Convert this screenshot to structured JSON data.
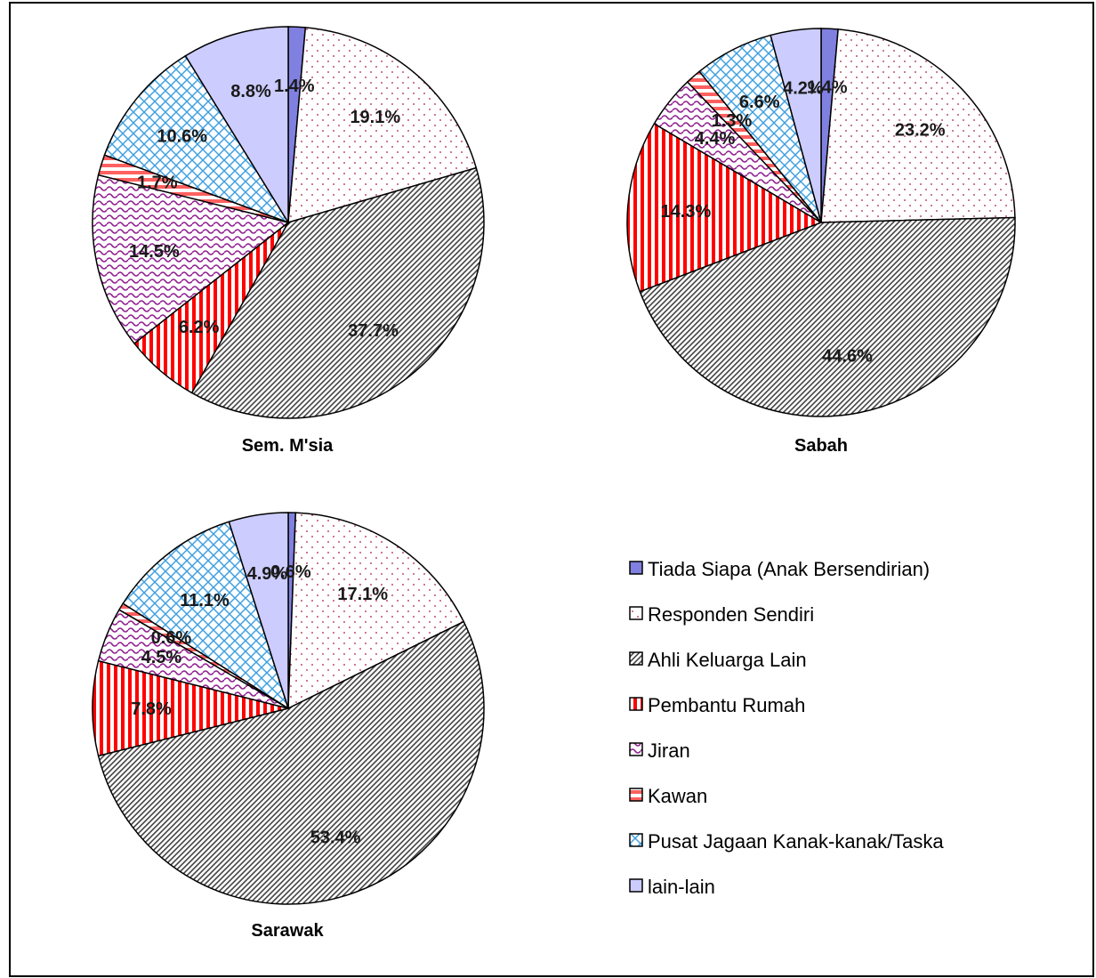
{
  "legend": [
    {
      "key": "tiada",
      "label": "Tiada Siapa (Anak Bersendirian)",
      "pattern": "solid",
      "color": "#8080e0"
    },
    {
      "key": "responden",
      "label": "Responden Sendiri",
      "pattern": "dots",
      "color": "#c05070"
    },
    {
      "key": "ahli",
      "label": "Ahli Keluarga Lain",
      "pattern": "diag",
      "color": "#404040"
    },
    {
      "key": "pembantu",
      "label": "Pembantu Rumah",
      "pattern": "vstripe",
      "color": "#ff0000"
    },
    {
      "key": "jiran",
      "label": "Jiran",
      "pattern": "wave",
      "color": "#902090"
    },
    {
      "key": "kawan",
      "label": "Kawan",
      "pattern": "hstripe",
      "color": "#ff5050"
    },
    {
      "key": "pusat",
      "label": "Pusat Jagaan Kanak-kanak/Taska",
      "pattern": "cross",
      "color": "#40a0e0"
    },
    {
      "key": "lain",
      "label": "lain-lain",
      "pattern": "solid",
      "color": "#ccccff"
    }
  ],
  "chart_data": [
    {
      "type": "pie",
      "title": "Sem. M'sia",
      "categories": [
        "Tiada Siapa (Anak Bersendirian)",
        "Responden Sendiri",
        "Ahli Keluarga Lain",
        "Pembantu Rumah",
        "Jiran",
        "Kawan",
        "Pusat Jagaan Kanak-kanak/Taska",
        "lain-lain"
      ],
      "values": [
        1.4,
        19.1,
        37.7,
        6.2,
        14.5,
        1.7,
        10.6,
        8.8
      ],
      "labels": [
        "1.4%",
        "19.1%",
        "37.7%",
        "6.2%",
        "14.5%",
        "1.7%",
        "10.6%",
        "8.8%"
      ]
    },
    {
      "type": "pie",
      "title": "Sabah",
      "categories": [
        "Tiada Siapa (Anak Bersendirian)",
        "Responden Sendiri",
        "Ahli Keluarga Lain",
        "Pembantu Rumah",
        "Jiran",
        "Kawan",
        "Pusat Jagaan Kanak-kanak/Taska",
        "lain-lain"
      ],
      "values": [
        1.4,
        23.2,
        44.6,
        14.3,
        4.4,
        1.3,
        6.6,
        4.2
      ],
      "labels": [
        "1.4%",
        "23.2%",
        "44.6%",
        "14.3%",
        "4.4%",
        "1.3%",
        "6.6%",
        "4.2%"
      ]
    },
    {
      "type": "pie",
      "title": "Sarawak",
      "categories": [
        "Tiada Siapa (Anak Bersendirian)",
        "Responden Sendiri",
        "Ahli Keluarga Lain",
        "Pembantu Rumah",
        "Jiran",
        "Kawan",
        "Pusat Jagaan Kanak-kanak/Taska",
        "lain-lain"
      ],
      "values": [
        0.6,
        17.1,
        53.4,
        7.8,
        4.5,
        0.6,
        11.1,
        4.9
      ],
      "labels": [
        "0.6%",
        "17.1%",
        "53.4%",
        "7.8%",
        "4.5%",
        "0.6%",
        "11.1%",
        "4.9%"
      ]
    }
  ]
}
